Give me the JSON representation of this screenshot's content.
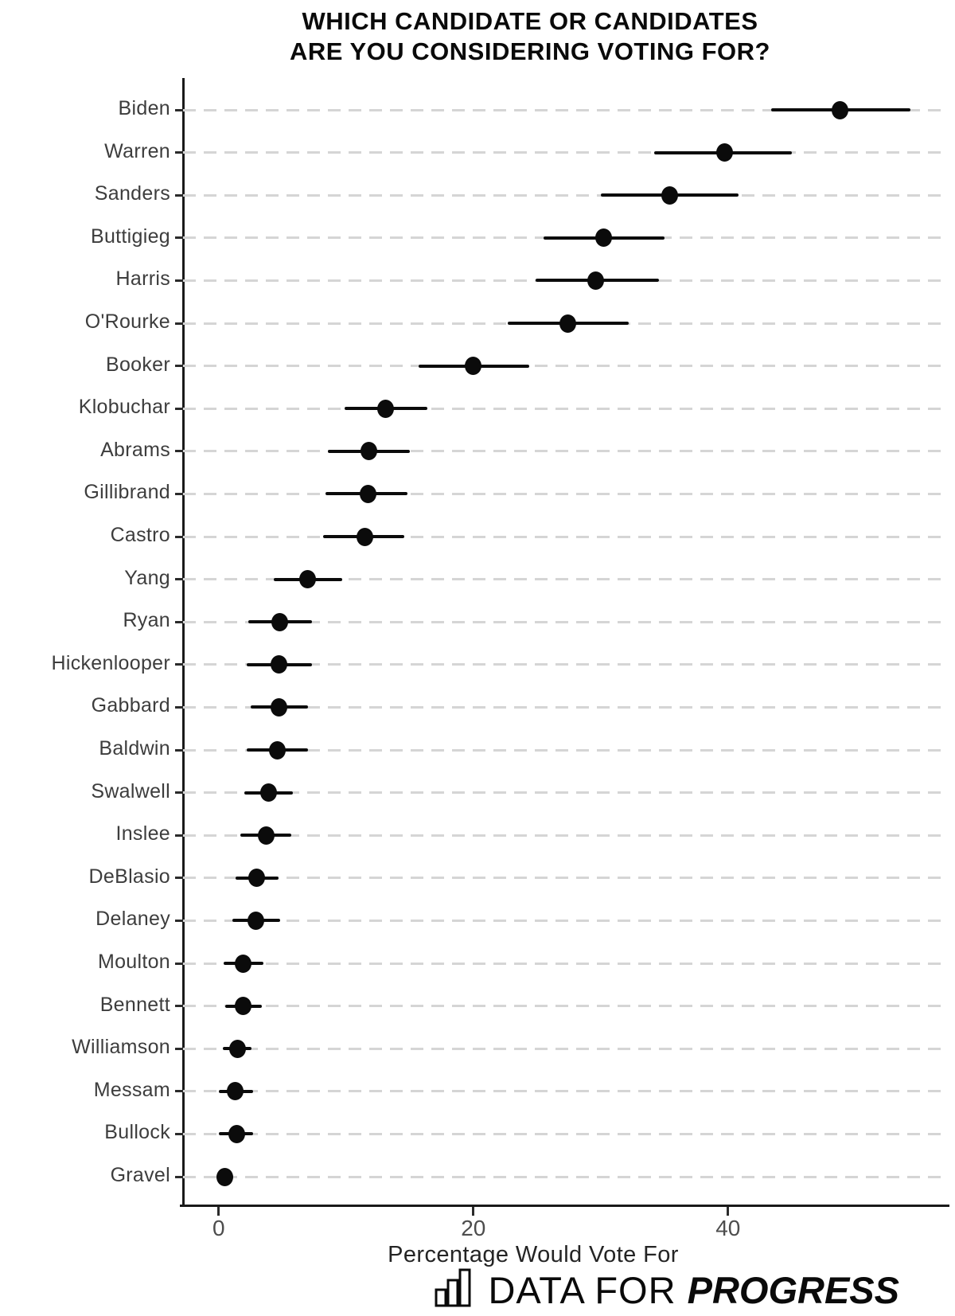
{
  "title": {
    "line1": "WHICH CANDIDATE OR CANDIDATES",
    "line2": "ARE YOU CONSIDERING VOTING FOR?"
  },
  "chart_data": {
    "type": "scatter",
    "subtype": "horizontal dot plot with confidence-interval error bars",
    "title": "WHICH CANDIDATE OR CANDIDATES ARE YOU CONSIDERING VOTING FOR?",
    "xlabel": "Percentage Would Vote For",
    "ylabel": "",
    "xlim": [
      -2.8,
      57.2
    ],
    "xticks": [
      0,
      20,
      40
    ],
    "xtick_labels": [
      "0",
      "20",
      "40"
    ],
    "grid": "horizontal dashed gray lines, one per category",
    "legend_position": "none",
    "categories": [
      "Biden",
      "Warren",
      "Sanders",
      "Buttigieg",
      "Harris",
      "O'Rourke",
      "Booker",
      "Klobuchar",
      "Abrams",
      "Gillibrand",
      "Castro",
      "Yang",
      "Ryan",
      "Hickenlooper",
      "Gabbard",
      "Baldwin",
      "Swalwell",
      "Inslee",
      "DeBlasio",
      "Delaney",
      "Moulton",
      "Bennett",
      "Williamson",
      "Messam",
      "Bullock",
      "Gravel"
    ],
    "series": [
      {
        "name": "Percentage Would Vote For",
        "values": [
          48.8,
          39.7,
          35.4,
          30.2,
          29.6,
          27.4,
          20.0,
          13.1,
          11.8,
          11.7,
          11.5,
          7.0,
          4.8,
          4.7,
          4.7,
          4.6,
          3.9,
          3.7,
          3.0,
          2.9,
          1.9,
          1.9,
          1.5,
          1.3,
          1.4,
          0.5
        ],
        "ci_low": [
          43.4,
          34.2,
          30.0,
          25.5,
          24.9,
          22.7,
          15.7,
          9.9,
          8.6,
          8.4,
          8.2,
          4.3,
          2.3,
          2.2,
          2.5,
          2.2,
          2.0,
          1.7,
          1.3,
          1.1,
          0.4,
          0.5,
          0.3,
          0.0,
          0.0,
          0.2
        ],
        "ci_high": [
          54.3,
          45.0,
          40.8,
          35.0,
          34.6,
          32.2,
          24.4,
          16.4,
          15.0,
          14.8,
          14.6,
          9.7,
          7.3,
          7.3,
          7.0,
          7.0,
          5.8,
          5.7,
          4.7,
          4.8,
          3.5,
          3.4,
          2.6,
          2.7,
          2.7,
          0.9
        ]
      }
    ]
  },
  "footer": {
    "brand_prefix": "DATA FOR",
    "brand_suffix": "PROGRESS",
    "logo_icon": "bar-chart-icon"
  },
  "colors": {
    "point": "#0b0b0b",
    "error_bar": "#0b0b0b",
    "grid": "#d5d5d5",
    "axis": "#1a1a1a",
    "category_label": "#3d3d3d",
    "tick_label": "#4d4d4d",
    "background": "#ffffff"
  }
}
